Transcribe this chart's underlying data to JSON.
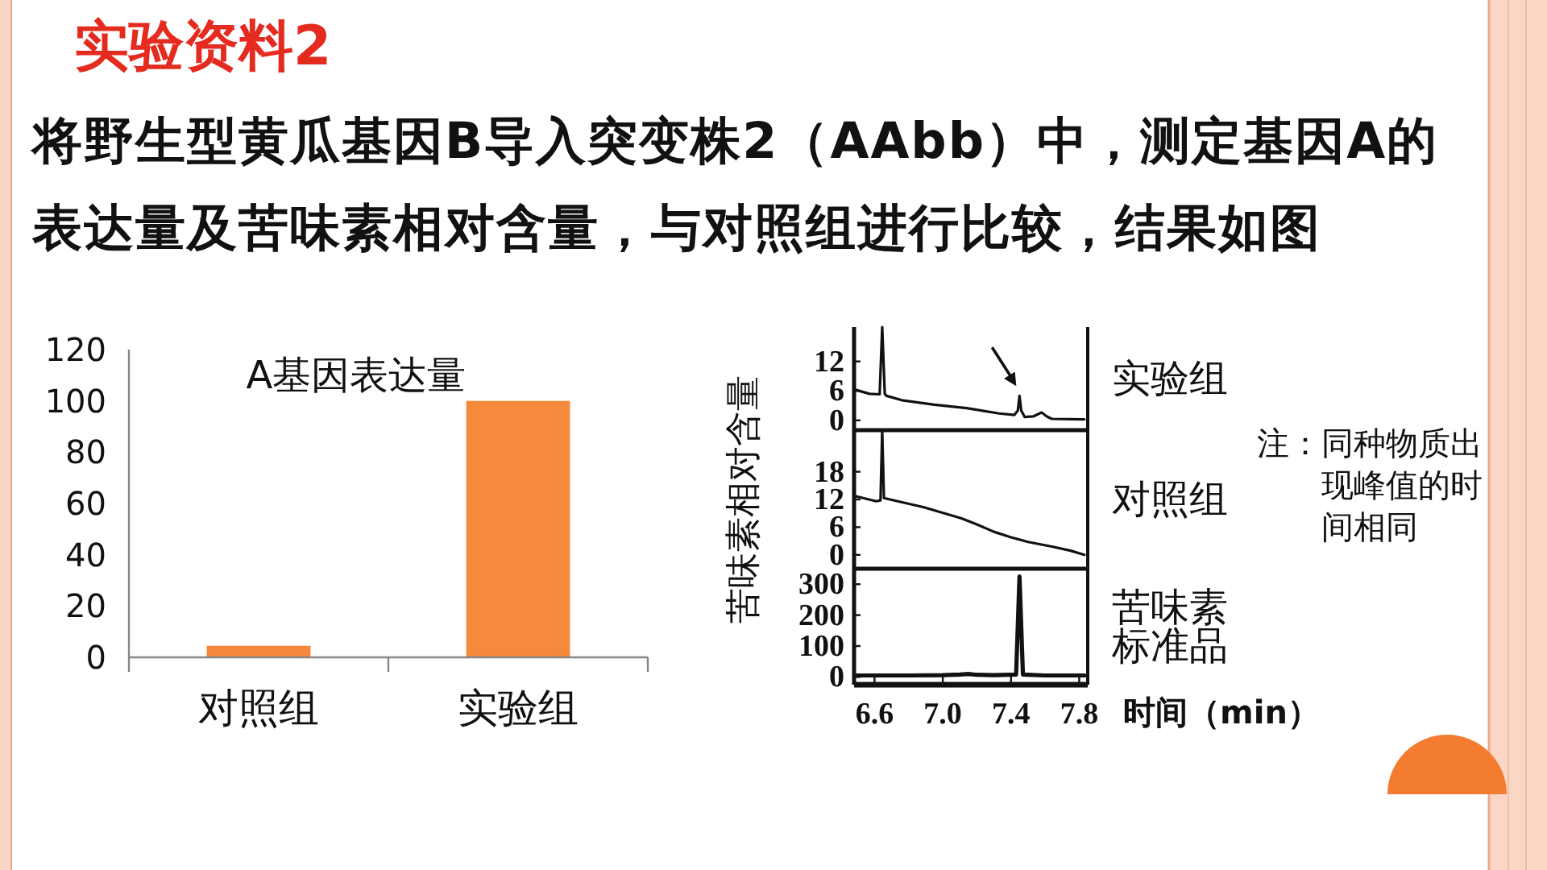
{
  "chart_data": [
    {
      "type": "other",
      "title": "实验资料2",
      "subtitle": "将野生型黄瓜基因B导入突变株2（AAbb）中，测定基因A的表达量及苦味素相对含量，与对照组进行比较，结果如图"
    },
    {
      "type": "bar",
      "title": "A基因表达量",
      "categories": [
        "对照组",
        "实验组"
      ],
      "values": [
        4.5,
        100
      ],
      "color": "#f58a3c",
      "ylim": [
        0,
        120
      ],
      "yticks": [
        0,
        20,
        40,
        60,
        80,
        100,
        120
      ]
    },
    {
      "type": "line",
      "series": [
        {
          "name": "实验组",
          "color": "#111111",
          "x": [
            6.48,
            6.57,
            6.63,
            6.645,
            6.66,
            6.67,
            6.76,
            6.95,
            7.14,
            7.33,
            7.42,
            7.44,
            7.45,
            7.46,
            7.48,
            7.53,
            7.58,
            7.61,
            7.64,
            7.83
          ],
          "values": [
            6.3,
            5.4,
            5.3,
            19,
            5.4,
            5.0,
            4.1,
            3.2,
            2.5,
            1.4,
            1.1,
            2,
            5.0,
            2,
            0.7,
            0.8,
            1.6,
            0.8,
            0.3,
            0.2
          ]
        }
      ],
      "xlim": [
        6.48,
        7.85
      ],
      "ylim": [
        -2,
        19
      ],
      "yticks": [
        0,
        6,
        12
      ],
      "tick_labels": "y"
    },
    {
      "type": "line",
      "ylabel": "苦味素相对含量",
      "annotations": [
        "注：同种物质出现峰值的时间相同"
      ],
      "series": [
        {
          "name": "对照组",
          "color": "#111111",
          "x": [
            6.49,
            6.61,
            6.635,
            6.645,
            6.655,
            6.69,
            6.89,
            7.11,
            7.2,
            7.3,
            7.4,
            7.5,
            7.64,
            7.75,
            7.83
          ],
          "values": [
            12.7,
            11.6,
            11.8,
            27,
            12.3,
            12,
            10.3,
            7.9,
            6.6,
            5.0,
            3.8,
            2.8,
            1.8,
            0.9,
            0
          ]
        }
      ],
      "xlim": [
        6.48,
        7.85
      ],
      "ylim": [
        -3,
        27
      ],
      "yticks": [
        0,
        6,
        12,
        18
      ],
      "tick_labels": "y"
    },
    {
      "type": "line",
      "xlabel": "时间（min）",
      "series": [
        {
          "name": "苦味素标准品",
          "color": "#111111",
          "x": [
            6.49,
            6.8,
            7.0,
            7.1,
            7.15,
            7.2,
            7.3,
            7.43,
            7.45,
            7.47,
            7.6,
            7.83
          ],
          "values": [
            5,
            5,
            6,
            8,
            10,
            7,
            6,
            8,
            325,
            8,
            5,
            5
          ]
        }
      ],
      "xlim": [
        6.48,
        7.85
      ],
      "xticks": [
        6.6,
        {
          "value": 7,
          "label": "7.0"
        },
        7.4,
        7.8
      ],
      "ylim": [
        -25,
        350
      ],
      "yticks": [
        0,
        100,
        200,
        300
      ]
    }
  ]
}
